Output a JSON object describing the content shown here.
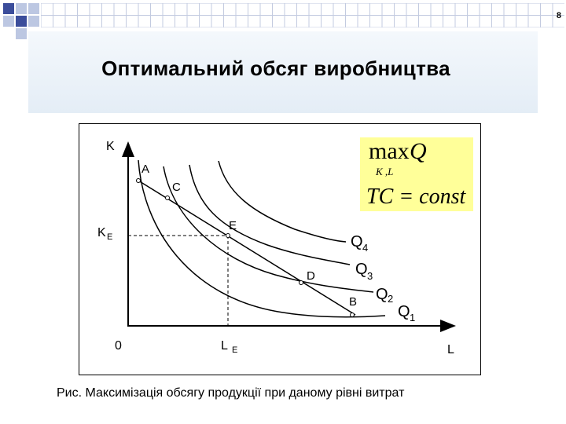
{
  "slide_number": "8",
  "title": "Оптимальний обсяг виробництва",
  "formula": {
    "max": "max",
    "objective": "Q",
    "subscript": "K ,L",
    "constraint": "TC = const",
    "box_color": "#ffff99"
  },
  "labels": {
    "y_axis": "K",
    "x_axis": "L",
    "origin": "0",
    "ke_main": "K",
    "ke_sub": "E",
    "le_main": "L",
    "le_sub": "E"
  },
  "points": {
    "a": "A",
    "c": "C",
    "e": "E",
    "d": "D",
    "b": "B"
  },
  "curves": [
    {
      "main": "Q",
      "sub": "1"
    },
    {
      "main": "Q",
      "sub": "2"
    },
    {
      "main": "Q",
      "sub": "3"
    },
    {
      "main": "Q",
      "sub": "4"
    }
  ],
  "caption": "Рис. Максимізація обсягу продукції при даному рівні витрат",
  "colors": {
    "decor_blue": "#3b4d9b",
    "decor_light": "#bcc7e2",
    "title_band": "#e8eff7"
  }
}
